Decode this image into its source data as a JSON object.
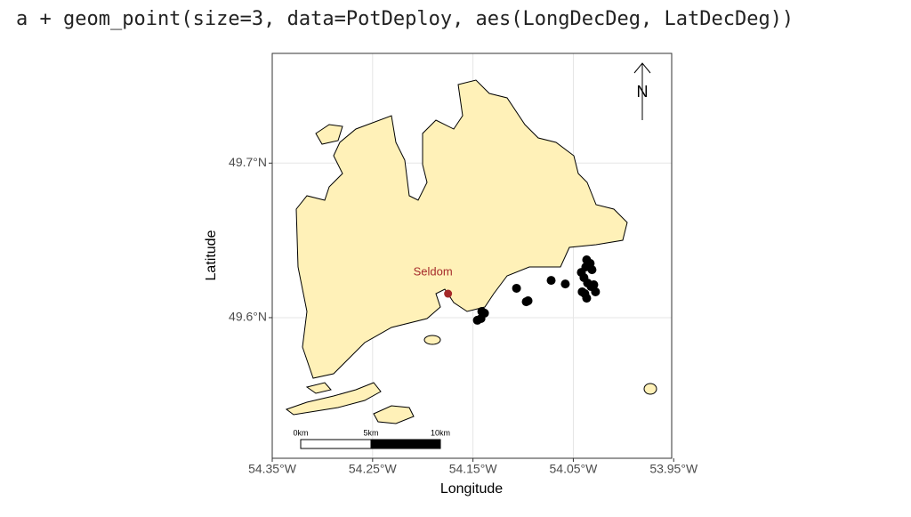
{
  "code": "a + geom_point(size=3, data=PotDeploy, aes(LongDecDeg, LatDecDeg))",
  "chart_data": {
    "type": "scatter",
    "x": [
      -54.1456,
      -54.142,
      -54.1385,
      -54.1412,
      -54.1066,
      -54.0969,
      -54.0951,
      -54.0721,
      -54.058,
      -54.0367,
      -54.0332,
      -54.0376,
      -54.0314,
      -54.042,
      -54.0394,
      -54.0358,
      -54.0323,
      -54.0279,
      -54.0385,
      -54.0296,
      -54.0412,
      -54.0367
    ],
    "values": [
      49.5983,
      49.5994,
      49.6029,
      49.604,
      49.619,
      49.6103,
      49.6109,
      49.6241,
      49.6218,
      49.6374,
      49.6351,
      49.6328,
      49.631,
      49.6293,
      49.6259,
      49.6224,
      49.6201,
      49.6167,
      49.6155,
      49.6213,
      49.6167,
      49.6126
    ],
    "color": "#000000",
    "x_label": "Longitude",
    "y_label": "Latitude",
    "xlim": [
      -54.35,
      -53.952
    ],
    "ylim": [
      49.509,
      49.771
    ],
    "xticks": [
      {
        "value": -54.35,
        "label": "54.35°W"
      },
      {
        "value": -54.25,
        "label": "54.25°W"
      },
      {
        "value": -54.15,
        "label": "54.15°W"
      },
      {
        "value": -54.05,
        "label": "54.05°W"
      },
      {
        "value": -53.95,
        "label": "53.95°W"
      }
    ],
    "yticks": [
      {
        "value": 49.6,
        "label": "49.6°N"
      },
      {
        "value": 49.7,
        "label": "49.7°N"
      }
    ],
    "grid": true,
    "annotations": [
      {
        "label": "Seldom",
        "x": -54.1748,
        "y": 49.6155,
        "color": "#a52a2a"
      }
    ],
    "scale_bar": [
      "0km",
      "5km",
      "10km"
    ],
    "north_arrow": "N"
  }
}
